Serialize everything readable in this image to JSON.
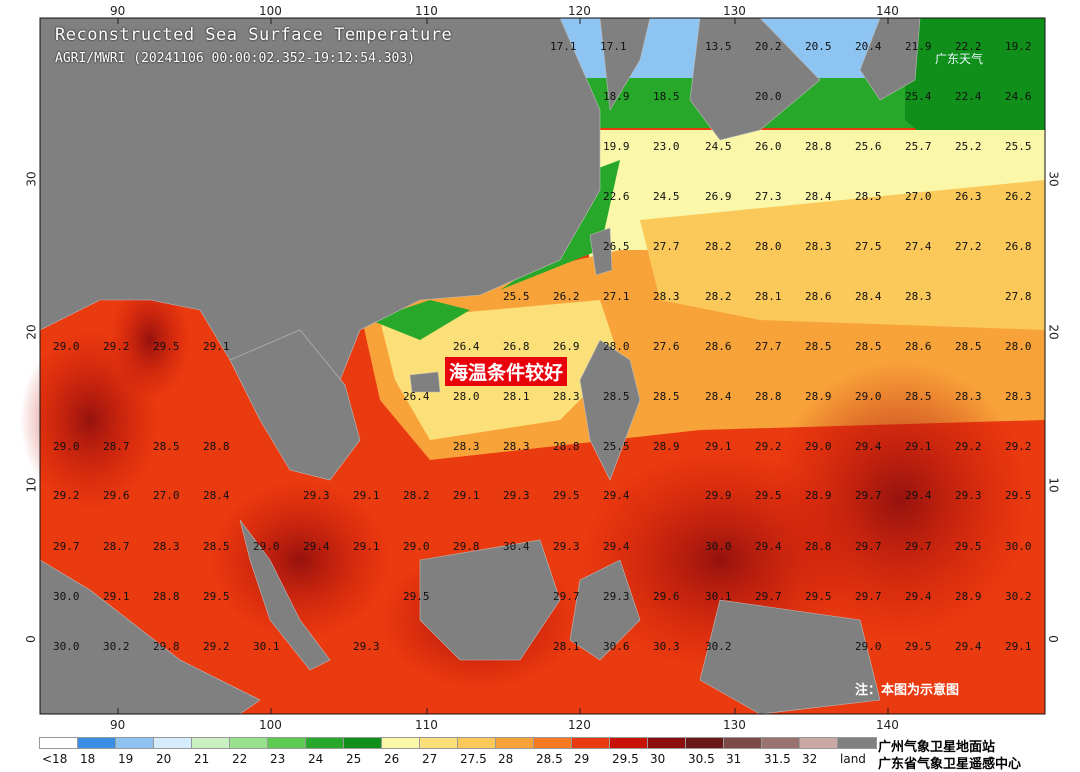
{
  "title": "Reconstructed Sea Surface Temperature",
  "subtitle": "AGRI/MWRI (20241106 00:00:02.352-19:12:54.303)",
  "callout": "海温条件较好",
  "logo": "广东天气",
  "note": "注：本图为示意图",
  "orgs": [
    "广州气象卫星地面站",
    "广东省气象卫星遥感中心"
  ],
  "lon_ticks": [
    "90",
    "100",
    "110",
    "120",
    "130",
    "140"
  ],
  "lat_ticks": [
    "30",
    "20",
    "10",
    "0"
  ],
  "legend": [
    {
      "label": "<18",
      "color": "#ffffff"
    },
    {
      "label": "18",
      "color": "#3b8ee6"
    },
    {
      "label": "19",
      "color": "#8ec4f2"
    },
    {
      "label": "20",
      "color": "#d4ecfb"
    },
    {
      "label": "21",
      "color": "#c8f0c0"
    },
    {
      "label": "22",
      "color": "#98e08a"
    },
    {
      "label": "23",
      "color": "#5ccc50"
    },
    {
      "label": "24",
      "color": "#28a82a"
    },
    {
      "label": "25",
      "color": "#10901a"
    },
    {
      "label": "26",
      "color": "#faf7a8"
    },
    {
      "label": "27",
      "color": "#fbe079"
    },
    {
      "label": "27.5",
      "color": "#fbc85a"
    },
    {
      "label": "28",
      "color": "#f8a33a"
    },
    {
      "label": "28.5",
      "color": "#f57a22"
    },
    {
      "label": "29",
      "color": "#ea3a10"
    },
    {
      "label": "29.5",
      "color": "#c81208"
    },
    {
      "label": "30",
      "color": "#8c0e0e"
    },
    {
      "label": "30.5",
      "color": "#6a1818"
    },
    {
      "label": "31",
      "color": "#7d4a48"
    },
    {
      "label": "31.5",
      "color": "#9a7370"
    },
    {
      "label": "32",
      "color": "#c9a8a6"
    },
    {
      "label": "land",
      "color": "#808080"
    }
  ],
  "values": [
    [
      "17.1",
      "17.1",
      "",
      "13.5",
      "20.2",
      "20.5",
      "20.4",
      "21.9",
      "22.2",
      "19.2"
    ],
    [
      "",
      "18.9",
      "18.5",
      "",
      "20.0",
      "",
      "",
      "25.4",
      "22.4",
      "24.6"
    ],
    [
      "",
      "19.9",
      "23.0",
      "24.5",
      "26.0",
      "28.8",
      "25.6",
      "25.7",
      "25.2",
      "25.5"
    ],
    [
      "",
      "22.6",
      "24.5",
      "26.9",
      "27.3",
      "28.4",
      "28.5",
      "27.0",
      "26.3",
      "26.2"
    ],
    [
      "",
      "26.5",
      "27.7",
      "28.2",
      "28.0",
      "28.3",
      "27.5",
      "27.4",
      "27.2",
      "26.8"
    ],
    [
      "25.5",
      "26.2",
      "27.1",
      "28.3",
      "28.2",
      "28.1",
      "28.6",
      "28.4",
      "28.3",
      "27.8"
    ],
    [
      "26.4",
      "26.8",
      "26.9",
      "28.0",
      "27.6",
      "28.6",
      "27.7",
      "28.5",
      "28.5",
      "28.6",
      "28.5",
      "28.0"
    ],
    [
      "26.4",
      "28.0",
      "28.1",
      "28.3",
      "28.5",
      "28.5",
      "28.4",
      "28.8",
      "28.9",
      "29.0",
      "28.5",
      "28.3",
      "28.3"
    ],
    [
      "28.3",
      "28.3",
      "28.8",
      "25.5",
      "28.9",
      "29.1",
      "29.2",
      "29.0",
      "29.4",
      "29.1",
      "29.2",
      "29.2"
    ],
    [
      "28.2",
      "29.1",
      "29.3",
      "29.5",
      "29.4",
      "29.9",
      "29.5",
      "28.9",
      "29.7",
      "29.4",
      "29.3",
      "29.5"
    ],
    [
      "29.0",
      "29.8",
      "30.4",
      "29.3",
      "29.4",
      "30.0",
      "29.4",
      "28.8",
      "29.7",
      "29.7",
      "29.5",
      "30.0"
    ],
    [
      "29.5",
      "29.7",
      "29.3",
      "29.6",
      "30.1",
      "29.7",
      "29.5",
      "29.7",
      "29.4",
      "28.9",
      "30.2"
    ],
    [
      "28.1",
      "30.6",
      "30.3",
      "30.2",
      "29.0",
      "29.5",
      "29.4",
      "29.1"
    ],
    [
      "29.2",
      "29.2",
      "29.3",
      "",
      "28.7",
      "29.1",
      "28.4",
      "29.3",
      "29.4",
      "29.9",
      "29.2"
    ],
    [
      "29.0",
      "29.2",
      "29.5",
      "29.1"
    ],
    [
      "29.0",
      "28.7",
      "28.5",
      "28.8"
    ],
    [
      "29.2",
      "29.6",
      "27.0",
      "28.4",
      "29.3",
      "29.1"
    ],
    [
      "29.7",
      "28.7",
      "28.3",
      "28.5",
      "29.0",
      "29.4",
      "29.1"
    ],
    [
      "30.0",
      "29.1",
      "28.8",
      "29.5"
    ],
    [
      "30.0",
      "30.2",
      "29.8",
      "29.2",
      "30.1",
      "29.3"
    ]
  ]
}
